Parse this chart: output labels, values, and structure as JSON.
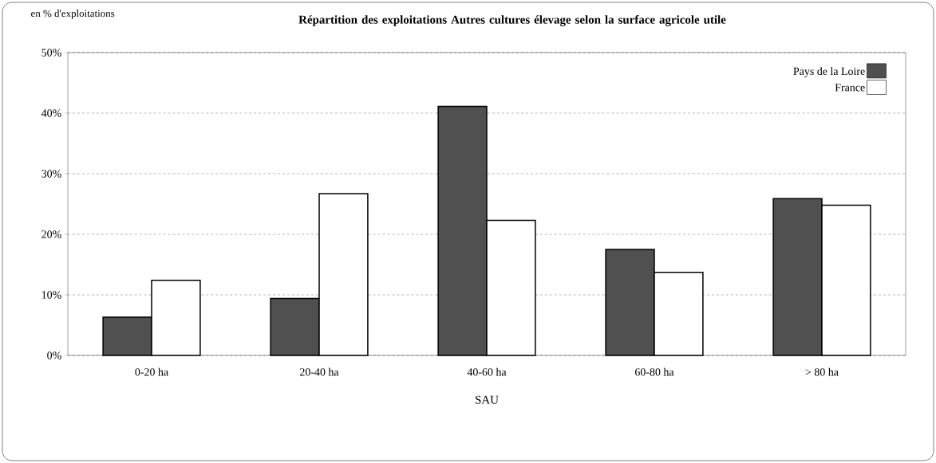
{
  "chart_data": {
    "type": "bar",
    "title": "Répartition des exploitations Autres cultures élevage selon la surface agricole utile",
    "ylabel": "en % d'exploitations",
    "xlabel": "SAU",
    "categories": [
      "0-20 ha",
      "20-40 ha",
      "40-60 ha",
      "60-80 ha",
      "> 80 ha"
    ],
    "series": [
      {
        "name": "Pays de la Loire",
        "color": "#505050",
        "values": [
          6.3,
          9.4,
          41.1,
          17.5,
          25.9
        ]
      },
      {
        "name": "France",
        "color": "#ffffff",
        "values": [
          12.4,
          26.7,
          22.3,
          13.7,
          24.8
        ]
      }
    ],
    "ylim": [
      0,
      50
    ],
    "yticks": [
      {
        "value": 0,
        "label": "0%"
      },
      {
        "value": 10,
        "label": "10%"
      },
      {
        "value": 20,
        "label": "20%"
      },
      {
        "value": 30,
        "label": "30%"
      },
      {
        "value": 40,
        "label": "40%"
      },
      {
        "value": 50,
        "label": "50%"
      }
    ],
    "grid": "y",
    "legend": "top right"
  }
}
